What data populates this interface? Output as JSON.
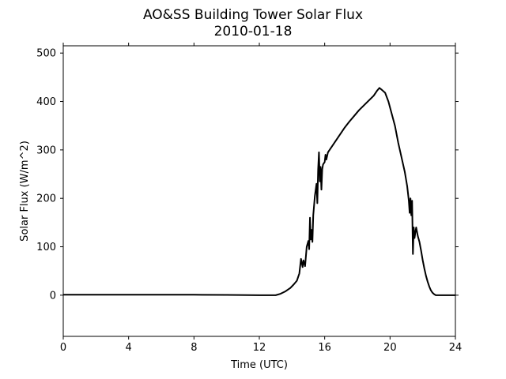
{
  "chart_data": {
    "type": "line",
    "title": "AO&SS Building Tower Solar Flux",
    "subtitle": "2010-01-18",
    "xlabel": "Time (UTC)",
    "ylabel": "Solar Flux (W/m^2)",
    "xlim": [
      0,
      24
    ],
    "ylim": [
      -85,
      515
    ],
    "xticks": [
      0,
      4,
      8,
      12,
      16,
      20,
      24
    ],
    "yticks": [
      0,
      100,
      200,
      300,
      400,
      500
    ],
    "grid": false,
    "series": [
      {
        "color": "#000000",
        "points": [
          [
            0,
            1
          ],
          [
            2,
            1
          ],
          [
            4,
            1
          ],
          [
            6,
            1
          ],
          [
            8,
            1
          ],
          [
            10,
            0.5
          ],
          [
            12,
            0
          ],
          [
            13,
            0
          ],
          [
            13.3,
            3
          ],
          [
            13.6,
            8
          ],
          [
            13.9,
            15
          ],
          [
            14.1,
            22
          ],
          [
            14.3,
            30
          ],
          [
            14.45,
            45
          ],
          [
            14.55,
            75
          ],
          [
            14.65,
            58
          ],
          [
            14.7,
            72
          ],
          [
            14.8,
            60
          ],
          [
            14.9,
            100
          ],
          [
            15.0,
            112
          ],
          [
            15.05,
            95
          ],
          [
            15.1,
            160
          ],
          [
            15.15,
            115
          ],
          [
            15.2,
            135
          ],
          [
            15.25,
            110
          ],
          [
            15.3,
            165
          ],
          [
            15.4,
            205
          ],
          [
            15.5,
            230
          ],
          [
            15.55,
            190
          ],
          [
            15.6,
            260
          ],
          [
            15.65,
            295
          ],
          [
            15.7,
            235
          ],
          [
            15.75,
            265
          ],
          [
            15.8,
            218
          ],
          [
            15.85,
            260
          ],
          [
            15.9,
            270
          ],
          [
            16.0,
            275
          ],
          [
            16.05,
            290
          ],
          [
            16.1,
            280
          ],
          [
            16.2,
            295
          ],
          [
            16.4,
            305
          ],
          [
            16.6,
            315
          ],
          [
            16.8,
            325
          ],
          [
            17.0,
            335
          ],
          [
            17.2,
            345
          ],
          [
            17.5,
            358
          ],
          [
            17.8,
            370
          ],
          [
            18.1,
            382
          ],
          [
            18.4,
            392
          ],
          [
            18.7,
            402
          ],
          [
            19.0,
            412
          ],
          [
            19.2,
            422
          ],
          [
            19.35,
            428
          ],
          [
            19.5,
            424
          ],
          [
            19.7,
            418
          ],
          [
            19.9,
            400
          ],
          [
            20.1,
            375
          ],
          [
            20.3,
            350
          ],
          [
            20.5,
            315
          ],
          [
            20.7,
            285
          ],
          [
            20.9,
            255
          ],
          [
            21.05,
            225
          ],
          [
            21.15,
            195
          ],
          [
            21.2,
            170
          ],
          [
            21.25,
            200
          ],
          [
            21.3,
            165
          ],
          [
            21.35,
            195
          ],
          [
            21.4,
            85
          ],
          [
            21.45,
            140
          ],
          [
            21.5,
            118
          ],
          [
            21.55,
            130
          ],
          [
            21.6,
            140
          ],
          [
            21.7,
            122
          ],
          [
            21.8,
            110
          ],
          [
            21.9,
            92
          ],
          [
            22.0,
            72
          ],
          [
            22.1,
            55
          ],
          [
            22.2,
            40
          ],
          [
            22.3,
            28
          ],
          [
            22.4,
            18
          ],
          [
            22.5,
            10
          ],
          [
            22.6,
            5
          ],
          [
            22.7,
            2
          ],
          [
            22.8,
            0
          ],
          [
            23.0,
            0
          ],
          [
            24.0,
            0
          ]
        ]
      }
    ]
  }
}
